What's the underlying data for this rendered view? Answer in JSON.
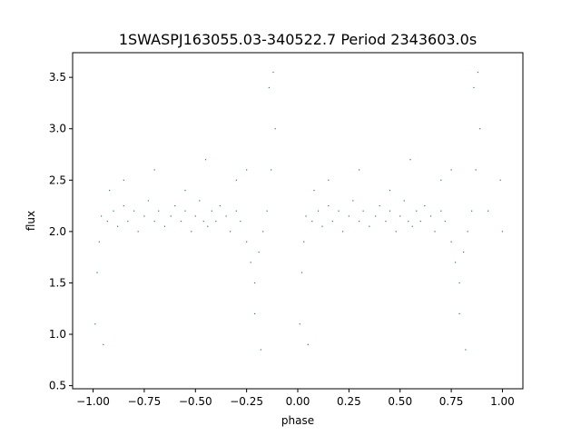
{
  "chart_data": {
    "type": "scatter",
    "title": "1SWASPJ163055.03-340522.7 Period 2343603.0s",
    "xlabel": "phase",
    "ylabel": "flux",
    "xlim": [
      -1.1,
      1.1
    ],
    "ylim": [
      0.47,
      3.74
    ],
    "x_ticks": [
      -1.0,
      -0.75,
      -0.5,
      -0.25,
      0.0,
      0.25,
      0.5,
      0.75,
      1.0
    ],
    "x_tick_labels": [
      "−1.00",
      "−0.75",
      "−0.50",
      "−0.25",
      "0.00",
      "0.25",
      "0.50",
      "0.75",
      "1.00"
    ],
    "y_ticks": [
      0.5,
      1.0,
      1.5,
      2.0,
      2.5,
      3.0,
      3.5
    ],
    "y_tick_labels": [
      "0.5",
      "1.0",
      "1.5",
      "2.0",
      "2.5",
      "3.0",
      "3.5"
    ],
    "grid": false,
    "legend": "none",
    "marker_color": "#1f77b4",
    "description_of_points": "phase-folded light curve repeated over phase -1 to 1; dense band near flux 2.0-2.3 with scatter spanning about 0.6 to 3.6",
    "series": [
      {
        "x": [
          -0.98,
          -0.97,
          -0.96,
          -0.93,
          -0.9,
          -0.88,
          -0.85,
          -0.83,
          -0.8,
          -0.78,
          -0.75,
          -0.73,
          -0.7,
          -0.68,
          -0.65,
          -0.62,
          -0.6,
          -0.57,
          -0.55,
          -0.52,
          -0.5,
          -0.48,
          -0.46,
          -0.44,
          -0.42,
          -0.4,
          -0.38,
          -0.35,
          -0.33,
          -0.3,
          -0.28,
          -0.25,
          -0.23,
          -0.21,
          -0.19,
          -0.17,
          -0.15,
          -0.13,
          -0.11,
          -0.99,
          -0.95,
          -0.92,
          -0.21,
          -0.18,
          -0.14,
          -0.12,
          -0.25,
          -0.3,
          -0.45,
          -0.55,
          -0.7,
          -0.85,
          0.02,
          0.03,
          0.04,
          0.07,
          0.1,
          0.12,
          0.15,
          0.17,
          0.2,
          0.22,
          0.25,
          0.27,
          0.3,
          0.32,
          0.35,
          0.38,
          0.4,
          0.43,
          0.45,
          0.48,
          0.5,
          0.52,
          0.54,
          0.56,
          0.58,
          0.6,
          0.62,
          0.65,
          0.67,
          0.7,
          0.72,
          0.75,
          0.77,
          0.79,
          0.81,
          0.83,
          0.85,
          0.87,
          0.89,
          0.01,
          0.05,
          0.08,
          0.79,
          0.82,
          0.86,
          0.88,
          0.75,
          0.7,
          0.55,
          0.45,
          0.3,
          0.15,
          1.0,
          0.99,
          0.93
        ],
        "y": [
          1.6,
          1.9,
          2.15,
          2.1,
          2.2,
          2.05,
          2.25,
          2.1,
          2.2,
          2.0,
          2.15,
          2.3,
          2.1,
          2.2,
          2.05,
          2.15,
          2.25,
          2.1,
          2.2,
          2.0,
          2.15,
          2.3,
          2.1,
          2.05,
          2.2,
          2.1,
          2.25,
          2.15,
          2.0,
          2.2,
          2.1,
          1.9,
          1.7,
          1.5,
          1.8,
          2.0,
          2.2,
          2.6,
          3.0,
          1.1,
          0.9,
          2.4,
          1.2,
          0.85,
          3.4,
          3.55,
          2.6,
          2.5,
          2.7,
          2.4,
          2.6,
          2.5,
          1.6,
          1.9,
          2.15,
          2.1,
          2.2,
          2.05,
          2.25,
          2.1,
          2.2,
          2.0,
          2.15,
          2.3,
          2.1,
          2.2,
          2.05,
          2.15,
          2.25,
          2.1,
          2.2,
          2.0,
          2.15,
          2.3,
          2.1,
          2.05,
          2.2,
          2.1,
          2.25,
          2.15,
          2.0,
          2.2,
          2.1,
          1.9,
          1.7,
          1.5,
          1.8,
          2.0,
          2.2,
          2.6,
          3.0,
          1.1,
          0.9,
          2.4,
          1.2,
          0.85,
          3.4,
          3.55,
          2.6,
          2.5,
          2.7,
          2.4,
          2.6,
          2.5,
          2.0,
          2.5,
          2.2
        ]
      }
    ]
  }
}
